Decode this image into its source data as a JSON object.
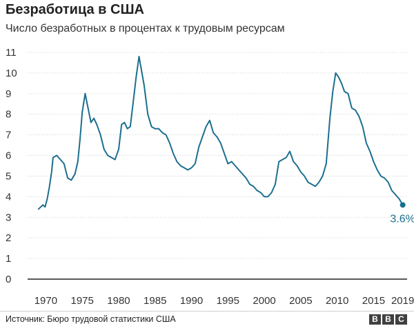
{
  "header": {
    "title": "Безработица в США",
    "subtitle": "Число безработных в процентах к трудовым ресурсам"
  },
  "footer": {
    "source": "Источник: Бюро трудовой статистики США",
    "logo_letters": [
      "B",
      "B",
      "C"
    ]
  },
  "colors": {
    "line": "#1a6e8e",
    "grid": "#d6d6d6",
    "axis": "#222222"
  },
  "chart_data": {
    "type": "line",
    "title": "Безработица в США",
    "subtitle": "Число безработных в процентах к трудовым ресурсам",
    "xlabel": "",
    "ylabel": "",
    "xlim": [
      1967.5,
      2019.6
    ],
    "ylim": [
      0,
      11
    ],
    "x_ticks": [
      1970,
      1975,
      1980,
      1985,
      1990,
      1995,
      2000,
      2005,
      2010,
      2015,
      2019
    ],
    "y_ticks": [
      0,
      1,
      2,
      3,
      4,
      5,
      6,
      7,
      8,
      9,
      10,
      11
    ],
    "grid": true,
    "series": [
      {
        "x": [
          1969.0,
          1969.3,
          1969.6,
          1969.9,
          1970.2,
          1970.5,
          1970.8,
          1971.0,
          1971.5,
          1972.0,
          1972.5,
          1973.0,
          1973.5,
          1974.0,
          1974.4,
          1974.7,
          1975.0,
          1975.4,
          1975.8,
          1976.2,
          1976.6,
          1977.0,
          1977.5,
          1978.0,
          1978.5,
          1979.0,
          1979.5,
          1980.0,
          1980.4,
          1980.8,
          1981.2,
          1981.6,
          1982.0,
          1982.4,
          1982.8,
          1983.0,
          1983.5,
          1984.0,
          1984.5,
          1985.0,
          1985.5,
          1986.0,
          1986.5,
          1987.0,
          1987.5,
          1988.0,
          1988.5,
          1989.0,
          1989.5,
          1990.0,
          1990.5,
          1991.0,
          1991.5,
          1992.0,
          1992.5,
          1993.0,
          1993.5,
          1994.0,
          1994.5,
          1995.0,
          1995.5,
          1996.0,
          1996.5,
          1997.0,
          1997.5,
          1998.0,
          1998.5,
          1999.0,
          1999.5,
          2000.0,
          2000.5,
          2001.0,
          2001.5,
          2002.0,
          2002.5,
          2003.0,
          2003.5,
          2004.0,
          2004.5,
          2005.0,
          2005.5,
          2006.0,
          2006.5,
          2007.0,
          2007.5,
          2008.0,
          2008.5,
          2009.0,
          2009.4,
          2009.8,
          2010.2,
          2010.6,
          2011.0,
          2011.5,
          2012.0,
          2012.5,
          2013.0,
          2013.5,
          2014.0,
          2014.5,
          2015.0,
          2015.5,
          2016.0,
          2016.5,
          2017.0,
          2017.5,
          2018.0,
          2018.5,
          2019.0
        ],
        "values": [
          3.4,
          3.5,
          3.6,
          3.5,
          3.9,
          4.5,
          5.2,
          5.9,
          6.0,
          5.8,
          5.6,
          4.9,
          4.8,
          5.1,
          5.7,
          6.8,
          8.1,
          9.0,
          8.3,
          7.6,
          7.8,
          7.5,
          7.0,
          6.3,
          6.0,
          5.9,
          5.8,
          6.3,
          7.5,
          7.6,
          7.3,
          7.4,
          8.6,
          9.8,
          10.8,
          10.4,
          9.4,
          8.0,
          7.4,
          7.3,
          7.3,
          7.1,
          7.0,
          6.6,
          6.1,
          5.7,
          5.5,
          5.4,
          5.3,
          5.4,
          5.6,
          6.4,
          6.9,
          7.4,
          7.7,
          7.1,
          6.9,
          6.6,
          6.1,
          5.6,
          5.7,
          5.5,
          5.3,
          5.1,
          4.9,
          4.6,
          4.5,
          4.3,
          4.2,
          4.0,
          4.0,
          4.2,
          4.6,
          5.7,
          5.8,
          5.9,
          6.2,
          5.7,
          5.5,
          5.2,
          5.0,
          4.7,
          4.6,
          4.5,
          4.7,
          5.0,
          5.6,
          7.8,
          9.1,
          10.0,
          9.8,
          9.5,
          9.1,
          9.0,
          8.3,
          8.2,
          7.9,
          7.4,
          6.6,
          6.2,
          5.7,
          5.3,
          5.0,
          4.9,
          4.7,
          4.3,
          4.1,
          3.9,
          3.6
        ],
        "end_label": "3.6%"
      }
    ]
  }
}
